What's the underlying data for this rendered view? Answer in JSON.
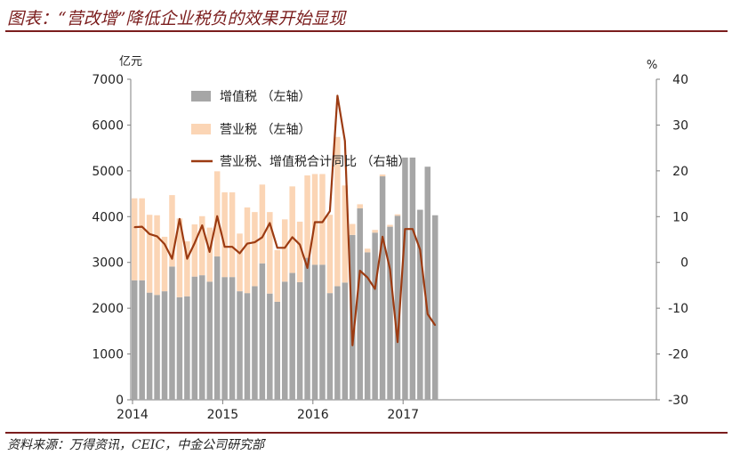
{
  "title": "图表：“营改增”降低企业税负的效果开始显现",
  "source": "资料来源：万得资讯，CEIC，中金公司研究部",
  "colors": {
    "vat": "#a6a6a6",
    "business_tax": "#fbd5b5",
    "yoy": "#9c3b12",
    "accent": "#7b1d1d",
    "axis": "#7f7f7f"
  },
  "chart_data": {
    "type": "bar",
    "left_unit": "亿元",
    "right_unit": "%",
    "ylim_left": [
      0,
      7000
    ],
    "yticks_left": [
      "0",
      "1000",
      "2000",
      "3000",
      "4000",
      "5000",
      "6000",
      "7000"
    ],
    "ylim_right": [
      -30,
      40
    ],
    "yticks_right": [
      "-30",
      "-20",
      "-10",
      "0",
      "10",
      "20",
      "30",
      "40"
    ],
    "xticks": [
      "2014",
      "2015",
      "2016",
      "2017"
    ],
    "categories": [
      "2014-01",
      "2014-02",
      "2014-03",
      "2014-04",
      "2014-05",
      "2014-06",
      "2014-07",
      "2014-08",
      "2014-09",
      "2014-10",
      "2014-11",
      "2014-12",
      "2015-01",
      "2015-02",
      "2015-03",
      "2015-04",
      "2015-05",
      "2015-06",
      "2015-07",
      "2015-08",
      "2015-09",
      "2015-10",
      "2015-11",
      "2015-12",
      "2016-01",
      "2016-02",
      "2016-03",
      "2016-04",
      "2016-05",
      "2016-06",
      "2016-07",
      "2016-08",
      "2016-09",
      "2016-10",
      "2016-11",
      "2016-12",
      "2017-01",
      "2017-02",
      "2017-03",
      "2017-04",
      "2017-05"
    ],
    "legend": [
      "增值税 （左轴）",
      "营业税 （左轴）",
      "营业税、增值税合计同比 （右轴）"
    ],
    "series": [
      {
        "name": "增值税 （左轴）",
        "axis": "left",
        "kind": "bar",
        "values": [
          2610,
          2610,
          2340,
          2290,
          2370,
          2910,
          2240,
          2260,
          2690,
          2720,
          2580,
          3130,
          2680,
          2680,
          2370,
          2330,
          2480,
          2980,
          2320,
          2140,
          2580,
          2770,
          2570,
          3100,
          2950,
          2950,
          2330,
          2480,
          2560,
          3600,
          4180,
          3220,
          3650,
          4880,
          3780,
          4020,
          5290,
          5290,
          4150,
          5090,
          4030
        ]
      },
      {
        "name": "营业税 （左轴）",
        "axis": "left",
        "kind": "bar",
        "values": [
          1790,
          1790,
          1700,
          1740,
          1190,
          1560,
          1720,
          1200,
          1140,
          1290,
          1180,
          1860,
          1850,
          1850,
          1260,
          1870,
          1620,
          1720,
          1780,
          1130,
          1360,
          1890,
          1320,
          1800,
          1980,
          1980,
          1710,
          3260,
          2120,
          240,
          90,
          80,
          60,
          40,
          40,
          30,
          0,
          0,
          0,
          0,
          0
        ]
      },
      {
        "name": "营业税、增值税合计同比 （右轴）",
        "axis": "right",
        "kind": "line",
        "values": [
          7.7,
          7.8,
          6.2,
          5.7,
          4.0,
          0.8,
          9.5,
          0.8,
          4.2,
          8.1,
          2.3,
          10.1,
          3.4,
          3.4,
          2.0,
          4.1,
          4.4,
          5.5,
          8.6,
          3.2,
          3.2,
          5.5,
          3.9,
          -1.2,
          8.8,
          8.8,
          11.2,
          36.4,
          26.5,
          -18.1,
          -1.8,
          -3.3,
          -5.8,
          5.6,
          -1.5,
          -17.4,
          7.3,
          7.3,
          2.8,
          -11.3,
          -13.7
        ]
      }
    ]
  }
}
